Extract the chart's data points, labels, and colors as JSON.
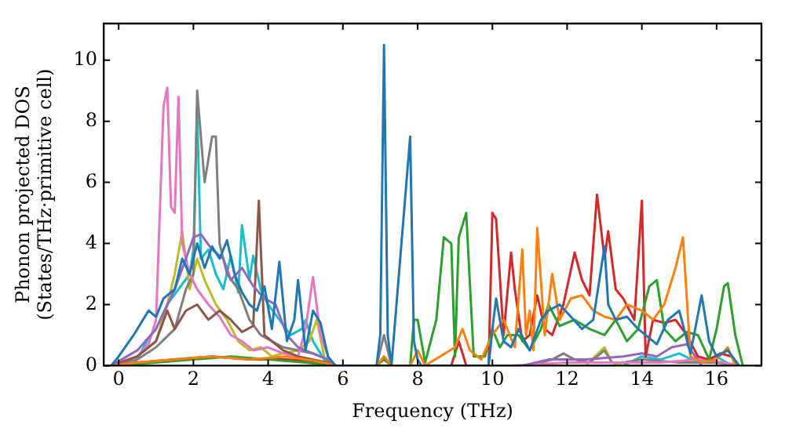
{
  "chart_data": {
    "type": "line",
    "xlabel": "Frequency (THz)",
    "ylabel": "Phonon projected DOS\n(States/THz·primitive cell)",
    "xlim": [
      -0.4,
      17.2
    ],
    "ylim": [
      0,
      11.2
    ],
    "xticks": [
      0,
      2,
      4,
      6,
      8,
      10,
      12,
      14,
      16
    ],
    "yticks": [
      0,
      2,
      4,
      6,
      8,
      10
    ],
    "grid": false,
    "legend": false,
    "marker": "none",
    "line_style": "solid",
    "series": [
      {
        "color": "#1f77b4",
        "x": [
          -0.2,
          0,
          0.4,
          0.8,
          1.0,
          1.2,
          1.5,
          1.7,
          1.9,
          2.1,
          2.3,
          2.5,
          2.7,
          2.9,
          3.1,
          3.3,
          3.5,
          3.7,
          3.9,
          4.1,
          4.3,
          4.5,
          4.7,
          4.8,
          5.0,
          5.2,
          5.4,
          5.6,
          5.8,
          6.9,
          7.0,
          7.1,
          7.2,
          7.3,
          7.7,
          7.8,
          7.9,
          8.0,
          8.1,
          9.9,
          10.0,
          10.1,
          10.3,
          10.5,
          10.7,
          11.0,
          11.3,
          11.5,
          11.8,
          12.1,
          12.4,
          12.7,
          13.0,
          13.1,
          13.3,
          13.6,
          13.9,
          14.1,
          14.4,
          14.7,
          15.0,
          15.3,
          15.6,
          15.8,
          16.0,
          16.3,
          16.6
        ],
        "values": [
          0,
          0.3,
          1.0,
          1.8,
          1.6,
          2.2,
          2.5,
          3.5,
          3.0,
          4.0,
          3.2,
          3.9,
          3.5,
          4.1,
          3.0,
          2.4,
          2.0,
          1.8,
          2.6,
          1.2,
          3.4,
          0.8,
          1.5,
          2.8,
          0.5,
          1.8,
          1.4,
          0.3,
          0,
          0,
          1.0,
          10.5,
          1.0,
          0,
          6.0,
          7.5,
          0.8,
          0.2,
          0,
          0,
          1.2,
          2.2,
          0.8,
          0.6,
          1.2,
          0.5,
          1.5,
          1.8,
          2.0,
          1.6,
          1.2,
          1.5,
          3.9,
          2.0,
          1.5,
          1.6,
          1.2,
          1.0,
          0.7,
          1.5,
          1.8,
          0.4,
          2.3,
          0.8,
          0.3,
          0.5,
          0
        ]
      },
      {
        "color": "#ff7f0e",
        "x": [
          -0.2,
          0.5,
          1.5,
          2.5,
          3.5,
          4.5,
          5.5,
          5.8,
          6.9,
          7.1,
          7.3,
          7.8,
          8.0,
          8.2,
          8.6,
          9.0,
          9.2,
          9.4,
          9.7,
          10.0,
          10.3,
          10.6,
          10.8,
          10.9,
          11.0,
          11.1,
          11.2,
          11.4,
          11.6,
          11.8,
          12.1,
          12.4,
          12.7,
          13.0,
          13.3,
          13.6,
          14.0,
          14.3,
          14.6,
          14.9,
          15.1,
          15.3,
          15.6,
          16.0,
          16.3,
          16.5
        ],
        "values": [
          0,
          0.1,
          0.2,
          0.3,
          0.2,
          0.3,
          0.1,
          0,
          0,
          0.3,
          0,
          0,
          0.5,
          0,
          0.3,
          0.6,
          1.2,
          0.5,
          0.2,
          1.0,
          1.5,
          0.6,
          3.8,
          1.0,
          1.8,
          0.5,
          4.5,
          1.0,
          3.0,
          1.5,
          2.2,
          2.3,
          1.8,
          1.6,
          1.5,
          2.0,
          1.8,
          1.5,
          2.0,
          3.2,
          4.2,
          0.3,
          0.1,
          0.2,
          0.6,
          0
        ]
      },
      {
        "color": "#2ca02c",
        "x": [
          -0.2,
          1.0,
          2.0,
          3.0,
          4.0,
          5.0,
          5.8,
          6.9,
          7.1,
          7.3,
          7.8,
          7.9,
          8.0,
          8.2,
          8.5,
          8.7,
          8.9,
          9.0,
          9.1,
          9.3,
          9.5,
          9.8,
          10.0,
          10.2,
          10.4,
          10.7,
          11.0,
          11.3,
          11.5,
          11.8,
          12.2,
          12.6,
          13.0,
          13.3,
          13.6,
          13.9,
          14.2,
          14.4,
          14.6,
          14.9,
          15.2,
          15.5,
          15.8,
          16.0,
          16.2,
          16.3,
          16.5,
          16.7
        ],
        "values": [
          0,
          0.1,
          0.2,
          0.3,
          0.2,
          0.1,
          0,
          0,
          0.2,
          0,
          0,
          1.5,
          1.5,
          0.1,
          1.5,
          4.2,
          4.0,
          0.3,
          4.2,
          5.0,
          0.3,
          0.3,
          1.2,
          0.6,
          1.0,
          1.0,
          0.5,
          1.2,
          2.0,
          1.3,
          1.5,
          1.2,
          1.0,
          1.5,
          0.8,
          1.2,
          2.6,
          2.8,
          1.2,
          0.8,
          1.1,
          1.0,
          0.2,
          1.2,
          2.6,
          2.7,
          1.0,
          0
        ]
      },
      {
        "color": "#d62728",
        "x": [
          -0.2,
          0.5,
          1.5,
          2.5,
          3.5,
          4.5,
          5.5,
          5.8,
          8.9,
          9.1,
          9.3,
          9.9,
          10.0,
          10.1,
          10.3,
          10.5,
          10.6,
          10.8,
          11.0,
          11.2,
          11.4,
          11.6,
          11.9,
          12.2,
          12.4,
          12.6,
          12.8,
          13.0,
          13.1,
          13.3,
          13.5,
          13.8,
          14.0,
          14.1,
          14.3,
          14.6,
          14.9,
          15.2,
          15.5,
          15.8,
          16.1,
          16.4,
          16.6
        ],
        "values": [
          0,
          0.1,
          0.2,
          0.3,
          0.2,
          0.2,
          0.1,
          0,
          0,
          0.8,
          0,
          0,
          5.0,
          4.8,
          1.0,
          3.7,
          2.5,
          0.8,
          1.0,
          2.3,
          1.2,
          1.0,
          2.0,
          3.7,
          2.8,
          2.3,
          5.6,
          3.5,
          4.4,
          2.5,
          2.2,
          1.5,
          5.4,
          0.3,
          1.5,
          1.4,
          1.5,
          1.0,
          0.3,
          0.2,
          0.4,
          0.3,
          0
        ]
      },
      {
        "color": "#9467bd",
        "x": [
          -0.2,
          0.5,
          1.0,
          1.5,
          1.8,
          2.0,
          2.2,
          2.5,
          2.8,
          3.0,
          3.3,
          3.6,
          3.9,
          4.2,
          4.5,
          4.8,
          5.2,
          5.6,
          5.8,
          10.8,
          11.5,
          12.5,
          13.5,
          14.0,
          14.4,
          14.8,
          15.2,
          15.6
        ],
        "values": [
          0,
          0.5,
          1.2,
          2.5,
          3.5,
          4.2,
          4.3,
          3.8,
          3.5,
          2.8,
          3.2,
          2.6,
          2.2,
          2.0,
          1.0,
          0.6,
          0.4,
          0.2,
          0,
          0,
          0.2,
          0.2,
          0.3,
          0.4,
          0.3,
          0.6,
          0.7,
          0
        ]
      },
      {
        "color": "#8c564b",
        "x": [
          -0.2,
          0.5,
          1.0,
          1.3,
          1.5,
          1.8,
          2.1,
          2.4,
          2.7,
          3.0,
          3.3,
          3.6,
          3.75,
          3.9,
          4.1,
          4.4,
          4.8,
          5.2,
          5.6,
          5.8
        ],
        "values": [
          0,
          0.3,
          0.8,
          1.8,
          1.2,
          1.8,
          2.0,
          1.5,
          1.8,
          1.5,
          1.1,
          1.3,
          5.4,
          1.0,
          0.8,
          0.5,
          0.3,
          0.2,
          0.1,
          0
        ]
      },
      {
        "color": "#e377c2",
        "x": [
          -0.2,
          0.5,
          0.8,
          1.0,
          1.2,
          1.3,
          1.4,
          1.5,
          1.6,
          1.7,
          1.9,
          2.1,
          2.4,
          2.7,
          3.0,
          3.3,
          3.6,
          4.0,
          4.4,
          4.8,
          5.0,
          5.2,
          5.4,
          5.7,
          10.5,
          12.0,
          14.5,
          15.5,
          16.2,
          16.6
        ],
        "values": [
          0,
          0.3,
          0.7,
          1.5,
          8.5,
          9.1,
          5.2,
          5.0,
          8.8,
          4.0,
          3.0,
          2.5,
          2.0,
          1.6,
          1.0,
          0.8,
          0.5,
          0.6,
          0.4,
          0.3,
          1.2,
          2.9,
          1.0,
          0,
          0,
          0.1,
          0.1,
          0.2,
          0.1,
          0
        ]
      },
      {
        "color": "#7f7f7f",
        "x": [
          -0.2,
          0.5,
          1.0,
          1.5,
          1.8,
          2.0,
          2.1,
          2.3,
          2.5,
          2.6,
          2.7,
          2.9,
          3.2,
          3.5,
          3.8,
          4.1,
          4.4,
          4.8,
          5.2,
          5.6,
          5.8,
          6.9,
          7.0,
          7.1,
          7.2,
          7.3,
          11.0,
          11.6,
          11.9,
          12.2,
          12.6,
          13.0,
          13.2,
          13.5,
          14.0,
          15.0,
          16.0,
          16.6
        ],
        "values": [
          0,
          0.2,
          0.6,
          1.2,
          2.5,
          3.0,
          9.0,
          6.0,
          7.5,
          7.5,
          4.0,
          3.0,
          2.5,
          1.5,
          1.0,
          0.8,
          0.6,
          0.5,
          0.4,
          0.2,
          0,
          0,
          0.5,
          1.0,
          0.5,
          0,
          0,
          0.2,
          0.4,
          0.2,
          0.1,
          0.5,
          0.1,
          0.1,
          0.2,
          0.1,
          0.1,
          0
        ]
      },
      {
        "color": "#bcbd22",
        "x": [
          -0.2,
          0.5,
          1.0,
          1.3,
          1.5,
          1.7,
          1.9,
          2.1,
          2.3,
          2.6,
          2.9,
          3.2,
          3.5,
          3.8,
          4.1,
          4.4,
          4.8,
          5.1,
          5.3,
          5.5,
          5.7,
          12.5,
          13.0,
          13.2,
          13.5,
          14.0
        ],
        "values": [
          0,
          0.3,
          0.8,
          2.0,
          3.0,
          4.4,
          2.5,
          3.5,
          2.8,
          2.0,
          1.5,
          0.8,
          0.5,
          0.6,
          0.3,
          0.4,
          0.5,
          0.8,
          1.5,
          0.3,
          0,
          0,
          0.6,
          0.1,
          0,
          0
        ]
      },
      {
        "color": "#17becf",
        "x": [
          0.4,
          0.8,
          1.0,
          1.3,
          1.6,
          1.9,
          2.0,
          2.1,
          2.2,
          2.4,
          2.6,
          2.8,
          3.0,
          3.2,
          3.3,
          3.5,
          3.6,
          3.8,
          4.0,
          4.3,
          4.6,
          4.9,
          5.0,
          5.2,
          5.5,
          5.8,
          13.5,
          14.0,
          14.5,
          15.0,
          15.5,
          16.0,
          16.4
        ],
        "values": [
          0,
          0.9,
          1.2,
          2.0,
          2.5,
          3.0,
          3.8,
          8.4,
          3.5,
          3.8,
          3.0,
          2.5,
          3.6,
          2.4,
          4.6,
          2.8,
          3.6,
          2.5,
          2.0,
          1.5,
          1.0,
          1.2,
          1.5,
          0.8,
          0.2,
          0,
          0,
          0.3,
          0.2,
          0.4,
          0.1,
          0.3,
          0
        ]
      }
    ]
  }
}
